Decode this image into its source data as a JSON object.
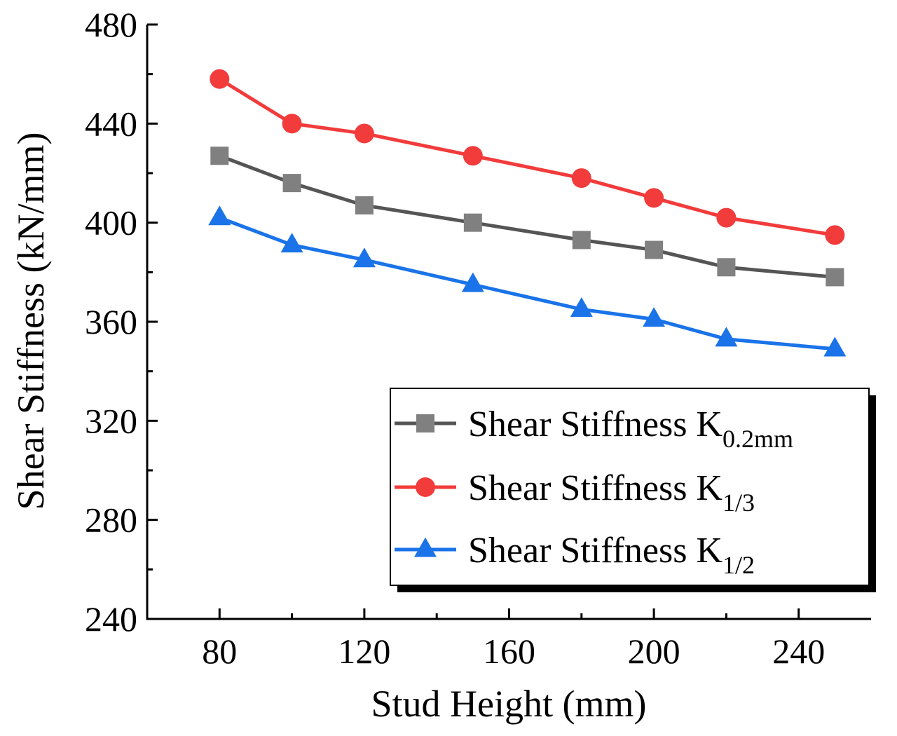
{
  "chart_data": {
    "type": "line",
    "title": "",
    "xlabel": "Stud Height (mm)",
    "ylabel": "Shear Stiffness (kN/mm)",
    "xlim": [
      60,
      260
    ],
    "ylim": [
      240,
      480
    ],
    "x_ticks": [
      80,
      120,
      160,
      200,
      240
    ],
    "x_tick_labels": [
      "80",
      "120",
      "160",
      "200",
      "240"
    ],
    "x_minor_ticks": [
      100,
      140,
      180,
      220
    ],
    "y_ticks": [
      240,
      280,
      320,
      360,
      400,
      440,
      480
    ],
    "y_tick_labels": [
      "240",
      "280",
      "320",
      "360",
      "400",
      "440",
      "480"
    ],
    "y_minor_ticks": [
      260,
      300,
      340,
      380,
      420,
      460
    ],
    "grid": false,
    "legend_position": "right",
    "x": [
      80,
      100,
      120,
      150,
      180,
      200,
      220,
      250
    ],
    "series": [
      {
        "name": "Shear Stiffness K",
        "subscript": "0.2mm",
        "color": "#555555",
        "marker_color": "#808080",
        "marker": "square",
        "values": [
          427,
          416,
          407,
          400,
          393,
          389,
          382,
          378
        ]
      },
      {
        "name": "Shear Stiffness K",
        "subscript": "1/3",
        "color": "#f23b3b",
        "marker_color": "#f23b3b",
        "marker": "circle",
        "values": [
          458,
          440,
          436,
          427,
          418,
          410,
          402,
          395
        ]
      },
      {
        "name": "Shear Stiffness K",
        "subscript": "1/2",
        "color": "#1a73e8",
        "marker_color": "#1a73e8",
        "marker": "triangle",
        "values": [
          402,
          391,
          385,
          375,
          365,
          361,
          353,
          349
        ]
      }
    ]
  }
}
